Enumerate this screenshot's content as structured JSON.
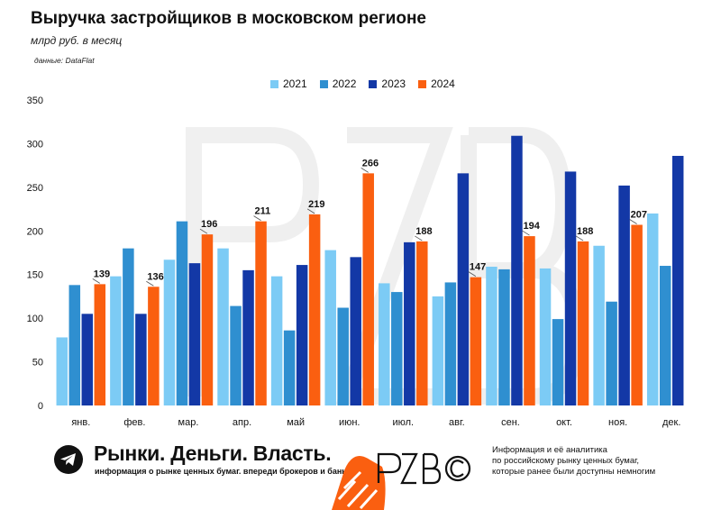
{
  "header": {
    "title": "Выручка застройщиков в московском регионе",
    "subtitle": "млрд руб. в месяц",
    "source": "данные: DataFlat"
  },
  "chart_data": {
    "type": "bar",
    "title": "Выручка застройщиков в московском регионе",
    "subtitle": "млрд руб. в месяц",
    "xlabel": "",
    "ylabel": "",
    "ylim": [
      0,
      350
    ],
    "yticks": [
      0,
      50,
      100,
      150,
      200,
      250,
      300,
      350
    ],
    "grid": false,
    "legend_position": "top-center",
    "categories": [
      "янв.",
      "фев.",
      "мар.",
      "апр.",
      "май",
      "июн.",
      "июл.",
      "авг.",
      "сен.",
      "окт.",
      "ноя.",
      "дек."
    ],
    "series": [
      {
        "name": "2021",
        "color": "#7ccbf5",
        "values": [
          78,
          148,
          167,
          180,
          148,
          178,
          140,
          125,
          159,
          157,
          183,
          220
        ]
      },
      {
        "name": "2022",
        "color": "#2f8fd0",
        "values": [
          138,
          180,
          211,
          114,
          86,
          112,
          130,
          141,
          156,
          99,
          119,
          160
        ]
      },
      {
        "name": "2023",
        "color": "#1338a6",
        "values": [
          105,
          105,
          163,
          155,
          161,
          170,
          187,
          266,
          309,
          268,
          252,
          286
        ]
      },
      {
        "name": "2024",
        "color": "#fa5f10",
        "values": [
          139,
          136,
          196,
          211,
          219,
          266,
          188,
          147,
          194,
          188,
          207,
          null
        ]
      }
    ],
    "data_labels": {
      "series": "2024",
      "values": [
        139,
        136,
        196,
        211,
        219,
        266,
        188,
        147,
        194,
        188,
        207
      ]
    }
  },
  "footer": {
    "telegram_icon": "telegram-icon",
    "brand_name": "Рынки. Деньги. Власть.",
    "brand_tagline": "информация о рынке ценных бумаг. впереди брокеров и банков.",
    "logo_icon": "rzb-logo",
    "note_lines": [
      "Информация и её аналитика",
      "по российскому рынку ценных бумаг,",
      "которые ранее были доступны немногим"
    ]
  }
}
